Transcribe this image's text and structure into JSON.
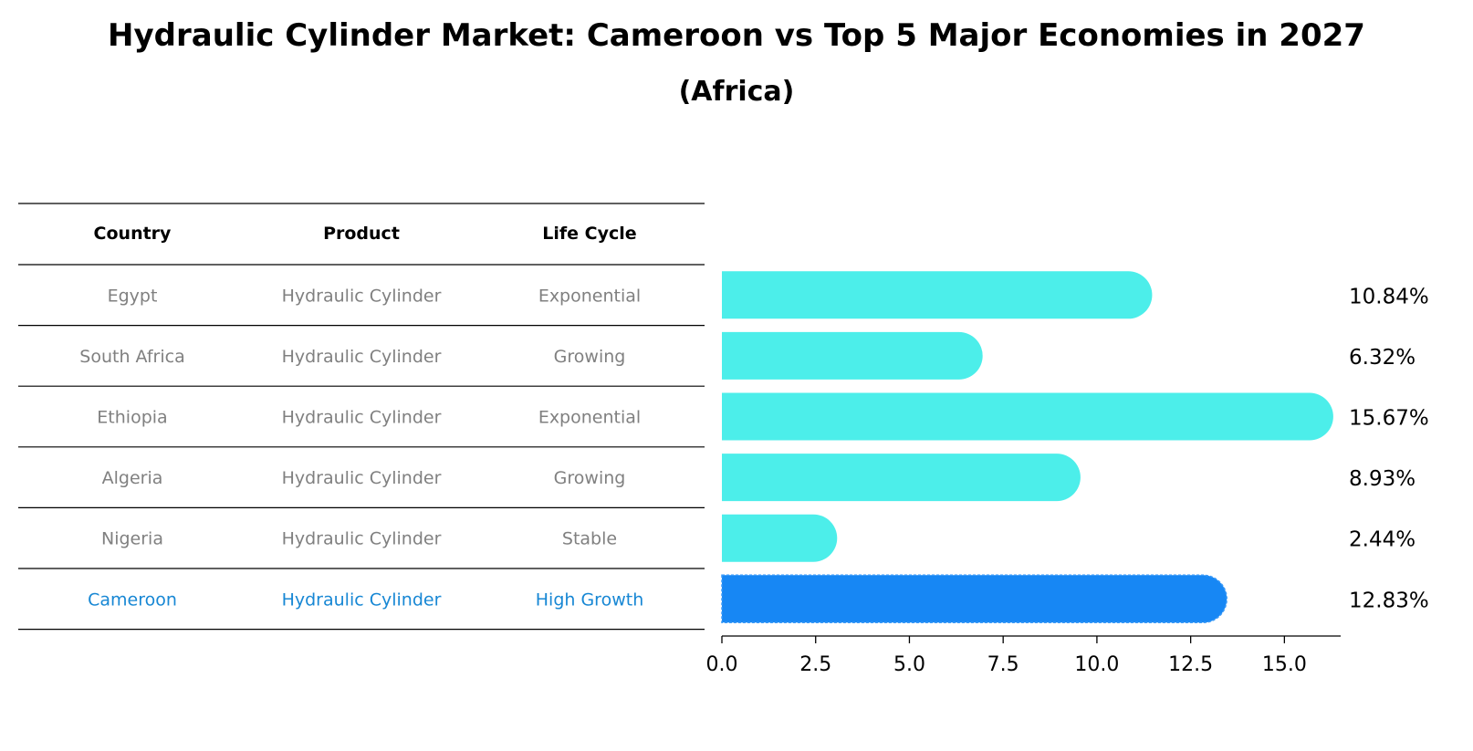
{
  "chart_data": {
    "type": "bar",
    "orientation": "horizontal",
    "title": "Hydraulic Cylinder Market: Cameroon vs Top 5 Major Economies in 2027",
    "subtitle": "(Africa)",
    "table": {
      "columns": [
        "Country",
        "Product",
        "Life Cycle"
      ],
      "rows": [
        {
          "country": "Egypt",
          "product": "Hydraulic Cylinder",
          "life_cycle": "Exponential",
          "highlight": false
        },
        {
          "country": "South Africa",
          "product": "Hydraulic Cylinder",
          "life_cycle": "Growing",
          "highlight": false
        },
        {
          "country": "Ethiopia",
          "product": "Hydraulic Cylinder",
          "life_cycle": "Exponential",
          "highlight": false
        },
        {
          "country": "Algeria",
          "product": "Hydraulic Cylinder",
          "life_cycle": "Growing",
          "highlight": false
        },
        {
          "country": "Nigeria",
          "product": "Hydraulic Cylinder",
          "life_cycle": "Stable",
          "highlight": false
        },
        {
          "country": "Cameroon",
          "product": "Hydraulic Cylinder",
          "life_cycle": "High Growth",
          "highlight": true
        }
      ]
    },
    "categories": [
      "Egypt",
      "South Africa",
      "Ethiopia",
      "Algeria",
      "Nigeria",
      "Cameroon"
    ],
    "values": [
      10.84,
      6.32,
      15.67,
      8.93,
      2.44,
      12.83
    ],
    "value_labels": [
      "10.84%",
      "6.32%",
      "15.67%",
      "8.93%",
      "2.44%",
      "12.83%"
    ],
    "xlim": [
      0,
      16.5
    ],
    "xticks": [
      0.0,
      2.5,
      5.0,
      7.5,
      10.0,
      12.5,
      15.0
    ],
    "xtick_labels": [
      "0.0",
      "2.5",
      "5.0",
      "7.5",
      "10.0",
      "12.5",
      "15.0"
    ],
    "colors": {
      "bar": "#4ceeea",
      "highlight_bar": "#1787f4",
      "text_muted": "#808080",
      "text_highlight": "#1787d4",
      "rule": "#000000"
    }
  }
}
